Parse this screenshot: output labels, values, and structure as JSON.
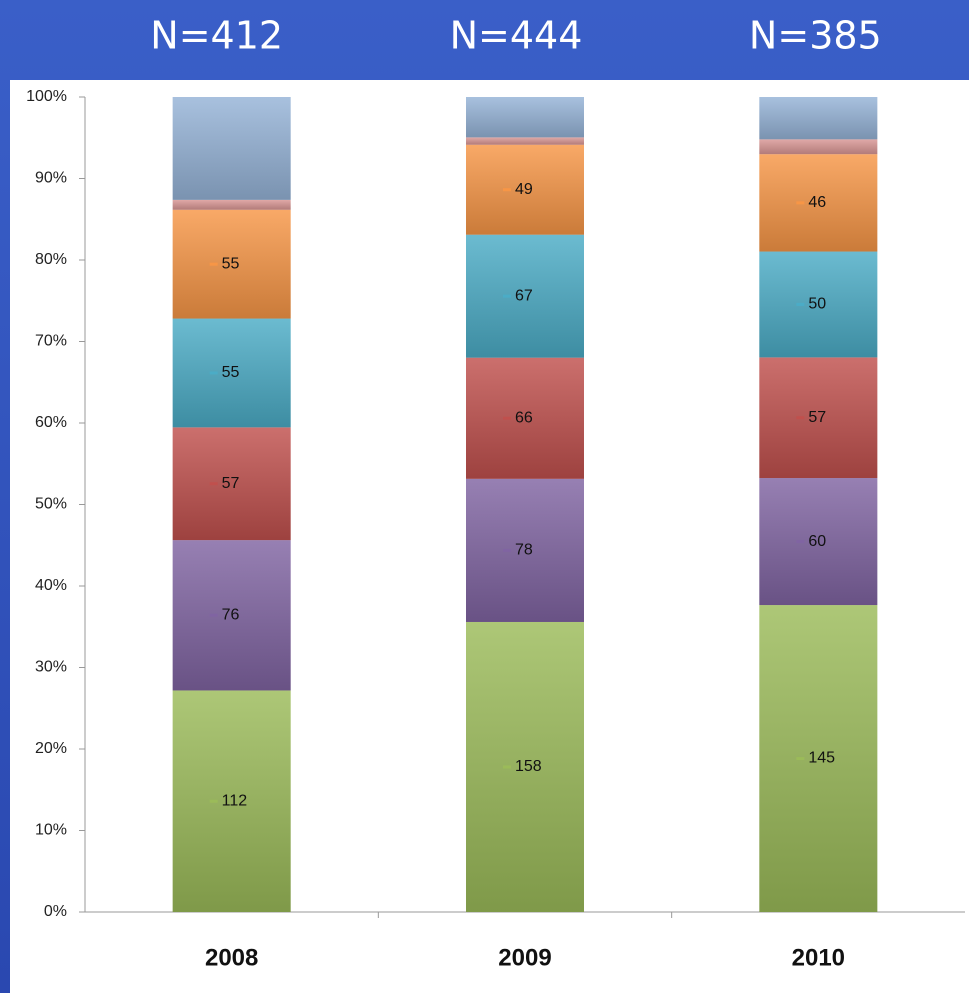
{
  "chart_data": {
    "type": "bar",
    "stacking": "percent",
    "annotations": [
      "N=412",
      "N=444",
      "N=385"
    ],
    "categories": [
      "2008",
      "2009",
      "2010"
    ],
    "series": [
      {
        "color": "#9bbb59",
        "values": [
          112,
          158,
          145
        ],
        "show_labels": true
      },
      {
        "color": "#8064a2",
        "values": [
          76,
          78,
          60
        ],
        "show_labels": true
      },
      {
        "color": "#c0504d",
        "values": [
          57,
          66,
          57
        ],
        "show_labels": true
      },
      {
        "color": "#4bacc6",
        "values": [
          55,
          67,
          50
        ],
        "show_labels": true
      },
      {
        "color": "#f79646",
        "values": [
          55,
          49,
          46
        ],
        "show_labels": true
      },
      {
        "color": "#d99694",
        "values": [
          5,
          4,
          7
        ],
        "show_labels": false
      },
      {
        "color": "#95b3d7",
        "values": [
          52,
          22,
          20
        ],
        "show_labels": false
      }
    ],
    "ylim": [
      0,
      100
    ],
    "yticks": [
      {
        "value": 0,
        "label": "0%"
      },
      {
        "value": 10,
        "label": "10%"
      },
      {
        "value": 20,
        "label": "20%"
      },
      {
        "value": 30,
        "label": "30%"
      },
      {
        "value": 40,
        "label": "40%"
      },
      {
        "value": 50,
        "label": "50%"
      },
      {
        "value": 60,
        "label": "60%"
      },
      {
        "value": 70,
        "label": "70%"
      },
      {
        "value": 80,
        "label": "80%"
      },
      {
        "value": 90,
        "label": "90%"
      },
      {
        "value": 100,
        "label": "100%"
      }
    ],
    "grid": false
  }
}
